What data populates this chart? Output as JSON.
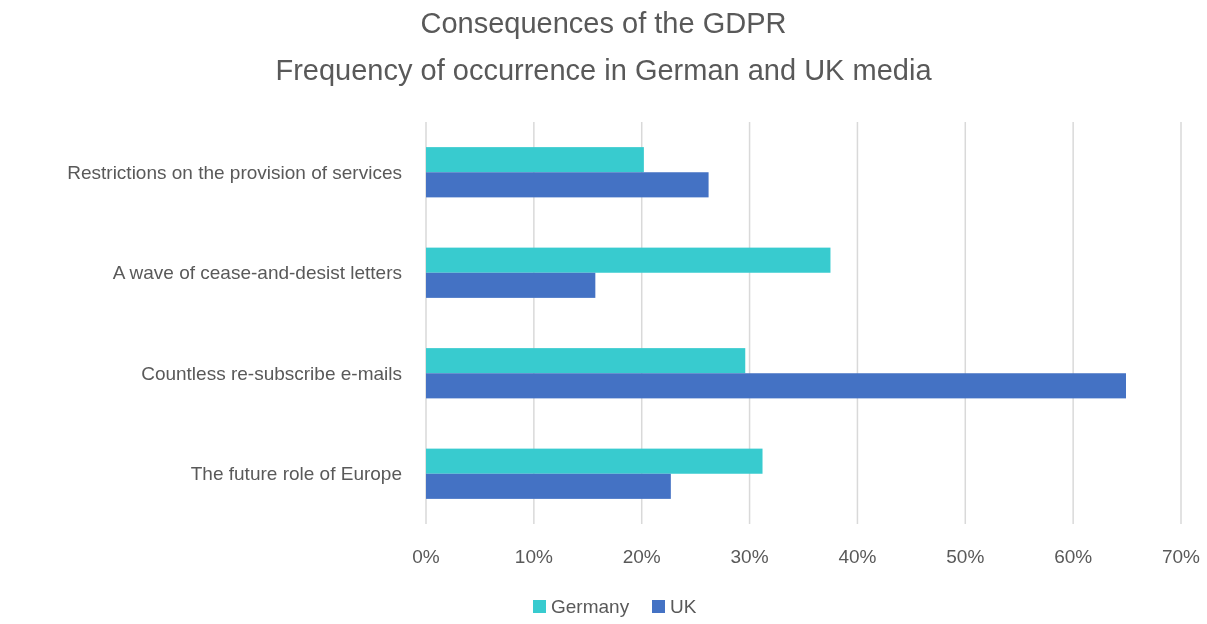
{
  "chart_data": {
    "type": "bar",
    "orientation": "horizontal",
    "title": "Consequences of the GDPR",
    "subtitle": "Frequency of occurrence in German and UK media",
    "categories": [
      "Restrictions on the provision of services",
      "A wave of cease-and-desist letters",
      "Countless re-subscribe e-mails",
      "The future role of Europe"
    ],
    "series": [
      {
        "name": "Germany",
        "color": "#38cbcf",
        "values": [
          20.2,
          37.5,
          29.6,
          31.2
        ]
      },
      {
        "name": "UK",
        "color": "#4472c4",
        "values": [
          26.2,
          15.7,
          64.9,
          22.7
        ]
      }
    ],
    "xlim": [
      0,
      70
    ],
    "xticks": [
      {
        "value": 0,
        "label": "0%"
      },
      {
        "value": 10,
        "label": "10%"
      },
      {
        "value": 20,
        "label": "20%"
      },
      {
        "value": 30,
        "label": "30%"
      },
      {
        "value": 40,
        "label": "40%"
      },
      {
        "value": 50,
        "label": "50%"
      },
      {
        "value": 60,
        "label": "60%"
      },
      {
        "value": 70,
        "label": "70%"
      }
    ],
    "grid": "x",
    "legend": "bottom"
  }
}
